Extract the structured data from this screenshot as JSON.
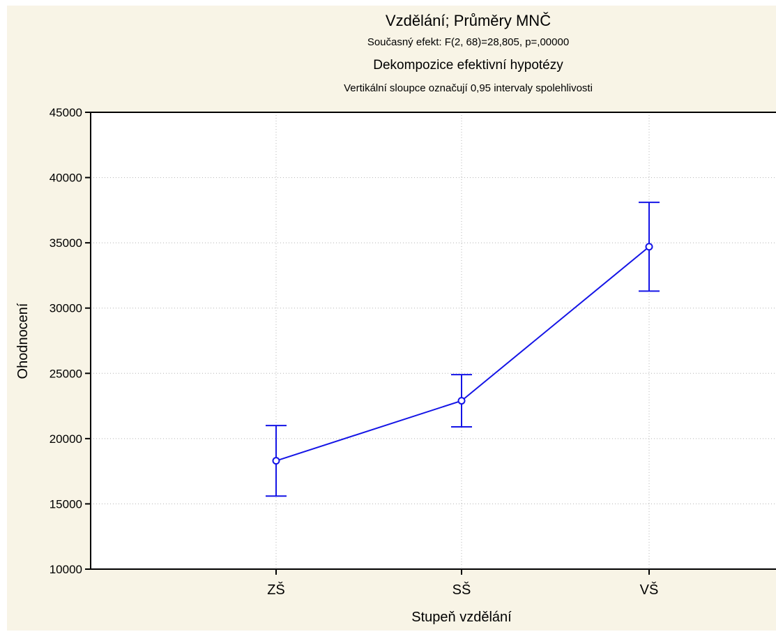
{
  "chart_data": {
    "type": "line",
    "title": "Vzdělání; Průměry MNČ",
    "subtitles": [
      "Současný efekt: F(2, 68)=28,805, p=,00000",
      "Dekompozice efektivní hypotézy",
      "Vertikální sloupce označují 0,95 intervaly spolehlivosti"
    ],
    "xlabel": "Stupeň vzdělání",
    "ylabel": "Ohodnocení",
    "categories": [
      "ZŠ",
      "SŠ",
      "VŠ"
    ],
    "series": [
      {
        "values": [
          18300,
          22900,
          34700
        ],
        "ci_low": [
          15600,
          20900,
          31300
        ],
        "ci_high": [
          21000,
          24900,
          38100
        ]
      }
    ],
    "ylim": [
      10000,
      45000
    ],
    "yticks": [
      10000,
      15000,
      20000,
      25000,
      30000,
      35000,
      40000,
      45000
    ],
    "grid": true,
    "legend": "none",
    "colors": {
      "series": "#1414e6",
      "background": "#f8f4e6",
      "plot_area": "#ffffff",
      "grid": "#b4b4b4"
    }
  }
}
